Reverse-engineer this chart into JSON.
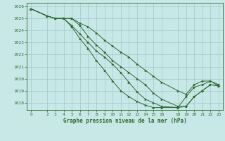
{
  "title": "Graphe pression niveau de la mer (hPa)",
  "background_color": "#c8e8e8",
  "grid_color": "#a0c8c8",
  "line_color": "#2d6a2d",
  "marker_color": "#2d6a2d",
  "xlim": [
    -0.5,
    23.5
  ],
  "ylim": [
    1017.4,
    1026.3
  ],
  "xticks": [
    0,
    2,
    3,
    4,
    5,
    6,
    7,
    8,
    9,
    10,
    11,
    12,
    13,
    14,
    15,
    16,
    18,
    19,
    20,
    21,
    22,
    23
  ],
  "yticks": [
    1018,
    1019,
    1020,
    1021,
    1022,
    1023,
    1024,
    1025,
    1026
  ],
  "lines": [
    {
      "x": [
        0,
        2,
        3,
        4,
        5,
        6,
        7,
        8,
        9,
        10,
        11,
        12,
        13,
        14,
        15,
        16,
        18,
        19,
        20,
        21,
        22,
        23
      ],
      "y": [
        1025.8,
        1025.2,
        1025.0,
        1025.0,
        1025.0,
        1024.6,
        1024.3,
        1023.8,
        1023.2,
        1022.7,
        1022.2,
        1021.8,
        1021.2,
        1020.7,
        1020.2,
        1019.7,
        1019.0,
        1018.7,
        1019.5,
        1019.8,
        1019.8,
        1019.4
      ]
    },
    {
      "x": [
        0,
        2,
        3,
        4,
        5,
        6,
        7,
        8,
        9,
        10,
        11,
        12,
        13,
        14,
        15,
        16,
        18,
        19,
        20,
        21,
        22,
        23
      ],
      "y": [
        1025.8,
        1025.2,
        1025.0,
        1025.0,
        1025.0,
        1024.4,
        1023.5,
        1022.8,
        1022.2,
        1021.5,
        1021.0,
        1020.5,
        1020.0,
        1019.5,
        1018.8,
        1018.3,
        1017.7,
        1017.7,
        1018.5,
        1019.0,
        1019.5,
        1019.4
      ]
    },
    {
      "x": [
        0,
        2,
        3,
        4,
        5,
        6,
        7,
        8,
        9,
        10,
        11,
        12,
        13,
        14,
        15,
        16,
        18,
        19,
        20,
        21,
        22,
        23
      ],
      "y": [
        1025.8,
        1025.2,
        1025.0,
        1025.0,
        1024.4,
        1023.7,
        1023.0,
        1022.3,
        1021.8,
        1021.2,
        1020.5,
        1019.7,
        1018.9,
        1018.3,
        1018.0,
        1017.7,
        1017.6,
        1018.5,
        1019.3,
        1019.5,
        1019.8,
        1019.5
      ]
    },
    {
      "x": [
        0,
        2,
        3,
        4,
        5,
        6,
        7,
        8,
        9,
        10,
        11,
        12,
        13,
        14,
        15,
        16,
        18,
        19,
        20,
        21,
        22,
        23
      ],
      "y": [
        1025.8,
        1025.2,
        1025.0,
        1025.0,
        1024.3,
        1023.3,
        1022.5,
        1021.5,
        1020.7,
        1019.8,
        1019.0,
        1018.5,
        1018.1,
        1017.8,
        1017.6,
        1017.6,
        1017.6,
        1017.7,
        1018.5,
        1019.0,
        1019.5,
        1019.4
      ]
    }
  ]
}
